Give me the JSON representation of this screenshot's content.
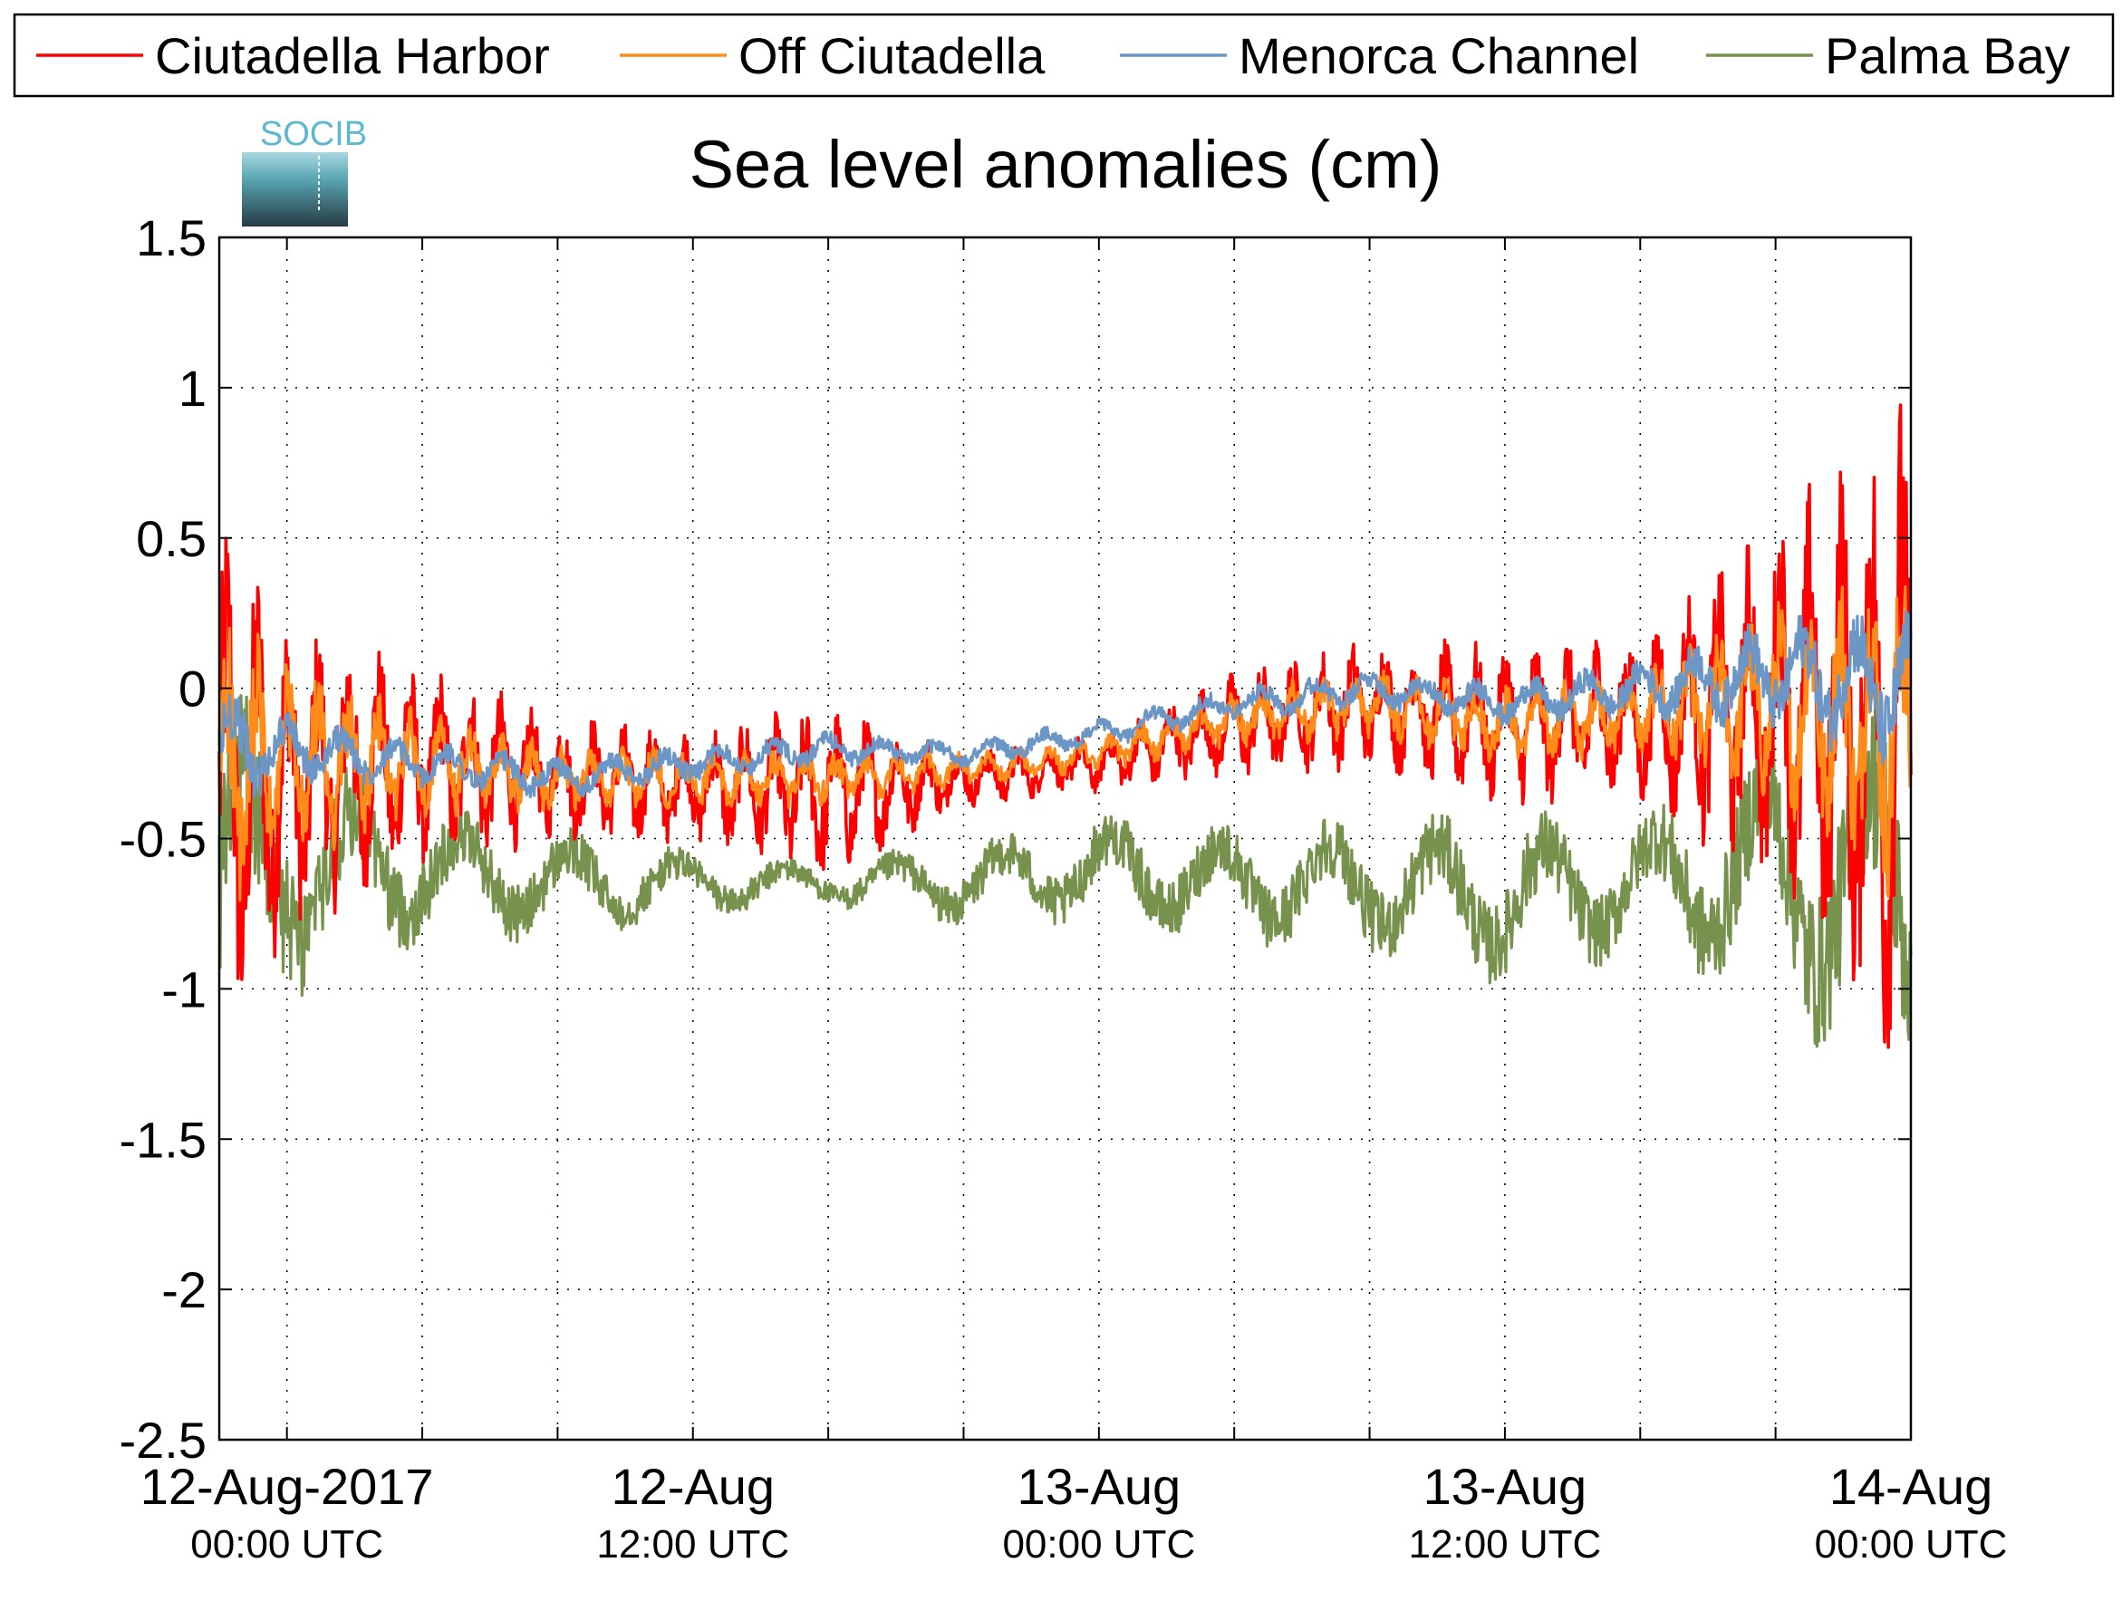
{
  "chart_data": {
    "type": "line",
    "title": "Sea level anomalies (cm)",
    "logo_text": "SOCIB",
    "ylim": [
      -2.5,
      1.5
    ],
    "yticks": [
      1.5,
      1,
      0.5,
      0,
      -0.5,
      -1,
      -1.5,
      -2,
      -2.5
    ],
    "ytick_labels": [
      "1.5",
      "1",
      "0.5",
      "0",
      "-0.5",
      "-1",
      "-1.5",
      "-2",
      "-2.5"
    ],
    "xlim": [
      "2017-08-11 22:00",
      "2017-08-14 00:00"
    ],
    "xticks": [
      "2017-08-12 00:00",
      "2017-08-12 04:00",
      "2017-08-12 08:00",
      "2017-08-12 12:00",
      "2017-08-12 16:00",
      "2017-08-12 20:00",
      "2017-08-13 00:00",
      "2017-08-13 04:00",
      "2017-08-13 08:00",
      "2017-08-13 12:00",
      "2017-08-13 16:00",
      "2017-08-13 20:00",
      "2017-08-14 00:00"
    ],
    "xtick_labels": [
      {
        "x": "2017-08-12 00:00",
        "line1": "12-Aug-2017",
        "line2": "00:00 UTC"
      },
      {
        "x": "2017-08-12 12:00",
        "line1": "12-Aug",
        "line2": "12:00 UTC"
      },
      {
        "x": "2017-08-13 00:00",
        "line1": "13-Aug",
        "line2": "00:00 UTC"
      },
      {
        "x": "2017-08-13 12:00",
        "line1": "13-Aug",
        "line2": "12:00 UTC"
      },
      {
        "x": "2017-08-14 00:00",
        "line1": "14-Aug",
        "line2": "00:00 UTC"
      }
    ],
    "grid": true,
    "legend_position": "top",
    "series": [
      {
        "name": "Ciutadella Harbor",
        "color": "#ff0000",
        "x": [
          "2017-08-11 22:00",
          "2017-08-12 00:00",
          "2017-08-12 04:00",
          "2017-08-12 08:00",
          "2017-08-12 12:00",
          "2017-08-12 16:00",
          "2017-08-12 20:00",
          "2017-08-13 00:00",
          "2017-08-13 04:00",
          "2017-08-13 08:00",
          "2017-08-13 12:00",
          "2017-08-13 16:00",
          "2017-08-13 20:00",
          "2017-08-14 00:00"
        ],
        "y": [
          -0.35,
          -0.3,
          -0.25,
          -0.3,
          -0.32,
          -0.35,
          -0.3,
          -0.25,
          -0.12,
          -0.05,
          -0.12,
          -0.1,
          -0.05,
          -0.2
        ],
        "amp": [
          1.0,
          0.55,
          0.35,
          0.22,
          0.2,
          0.3,
          0.1,
          0.1,
          0.18,
          0.22,
          0.28,
          0.3,
          0.65,
          1.25
        ]
      },
      {
        "name": "Off Ciutadella",
        "color": "#ff8c1a",
        "x": [
          "2017-08-11 22:00",
          "2017-08-12 00:00",
          "2017-08-12 04:00",
          "2017-08-12 08:00",
          "2017-08-12 12:00",
          "2017-08-12 16:00",
          "2017-08-12 20:00",
          "2017-08-13 00:00",
          "2017-08-13 04:00",
          "2017-08-13 08:00",
          "2017-08-13 12:00",
          "2017-08-13 16:00",
          "2017-08-13 20:00",
          "2017-08-14 00:00"
        ],
        "y": [
          -0.3,
          -0.25,
          -0.25,
          -0.3,
          -0.3,
          -0.3,
          -0.27,
          -0.22,
          -0.1,
          -0.05,
          -0.12,
          -0.08,
          -0.05,
          -0.15
        ],
        "amp": [
          0.6,
          0.35,
          0.18,
          0.12,
          0.1,
          0.1,
          0.06,
          0.06,
          0.1,
          0.12,
          0.14,
          0.15,
          0.35,
          0.65
        ]
      },
      {
        "name": "Menorca Channel",
        "color": "#6b96c6",
        "x": [
          "2017-08-11 22:00",
          "2017-08-12 00:00",
          "2017-08-12 04:00",
          "2017-08-12 08:00",
          "2017-08-12 12:00",
          "2017-08-12 16:00",
          "2017-08-12 20:00",
          "2017-08-13 00:00",
          "2017-08-13 04:00",
          "2017-08-13 08:00",
          "2017-08-13 12:00",
          "2017-08-13 16:00",
          "2017-08-13 20:00",
          "2017-08-14 00:00"
        ],
        "y": [
          -0.2,
          -0.2,
          -0.25,
          -0.3,
          -0.25,
          -0.2,
          -0.22,
          -0.15,
          -0.05,
          0.0,
          -0.05,
          0.0,
          0.05,
          0.0
        ],
        "amp": [
          0.25,
          0.12,
          0.08,
          0.07,
          0.07,
          0.06,
          0.05,
          0.05,
          0.06,
          0.07,
          0.08,
          0.1,
          0.2,
          0.3
        ]
      },
      {
        "name": "Palma Bay",
        "color": "#77924c",
        "x": [
          "2017-08-11 22:00",
          "2017-08-12 00:00",
          "2017-08-12 04:00",
          "2017-08-12 08:00",
          "2017-08-12 12:00",
          "2017-08-12 16:00",
          "2017-08-12 20:00",
          "2017-08-13 00:00",
          "2017-08-13 04:00",
          "2017-08-13 08:00",
          "2017-08-13 12:00",
          "2017-08-13 16:00",
          "2017-08-13 20:00",
          "2017-08-14 00:00"
        ],
        "y": [
          -0.7,
          -0.6,
          -0.6,
          -0.65,
          -0.65,
          -0.65,
          -0.65,
          -0.6,
          -0.65,
          -0.65,
          -0.7,
          -0.65,
          -0.6,
          -0.7
        ],
        "amp": [
          0.8,
          0.45,
          0.25,
          0.2,
          0.12,
          0.08,
          0.15,
          0.2,
          0.22,
          0.25,
          0.3,
          0.25,
          0.5,
          0.75
        ]
      }
    ]
  }
}
